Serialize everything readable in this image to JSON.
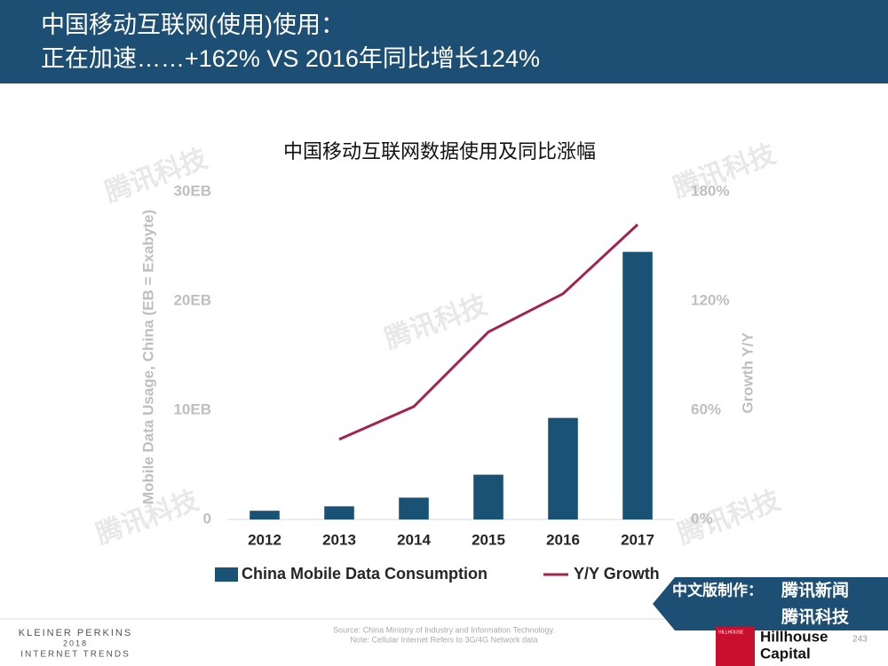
{
  "header": {
    "title_line1": "中国移动互联网(使用)使用：",
    "title_line2": "正在加速……+162% VS 2016年同比增长124%"
  },
  "watermark": "腾讯科技",
  "chart_data": {
    "type": "bar_line",
    "title": "中国移动互联网数据使用及同比涨幅",
    "categories": [
      "2012",
      "2013",
      "2014",
      "2015",
      "2016",
      "2017"
    ],
    "series": [
      {
        "name": "China Mobile Data Consumption",
        "color": "#1a5276",
        "values": [
          0.8,
          1.2,
          2.0,
          4.1,
          9.3,
          24.5
        ]
      },
      {
        "name": "Y/Y Growth",
        "color": "#a3224f",
        "axis": "y2",
        "values": [
          null,
          44,
          62,
          103,
          124,
          162
        ]
      }
    ],
    "ylabel": "Mobile Data Usage, China (EB = Exabyte)",
    "y2label": "Growth Y/Y",
    "ylim": [
      0,
      30
    ],
    "yticks": [
      0,
      {
        "value": 10,
        "label": "10EB"
      },
      {
        "value": 20,
        "label": "20EB"
      },
      {
        "value": 30,
        "label": "30EB"
      }
    ],
    "y2lim": [
      0,
      180
    ],
    "y2ticks": [
      {
        "value": 0,
        "label": "0%"
      },
      {
        "value": 60,
        "label": "60%"
      },
      {
        "value": 120,
        "label": "120%"
      },
      {
        "value": 180,
        "label": "180%"
      }
    ],
    "grid": false
  },
  "footer": {
    "kp_line1": "KLEINER PERKINS",
    "kp_line2": "2018",
    "kp_line3": "INTERNET TRENDS",
    "source_line1": "Source: China Ministry of Industry and Information Technology.",
    "source_line2": "Note: Cellular Internet Refers to 3G/4G Network data",
    "page_number": "243",
    "made_by": "中文版制作：",
    "brand1": "腾讯新闻",
    "brand2": "腾讯科技",
    "hillhouse_small": "HILLHOUSE",
    "hillhouse1": "Hillhouse",
    "hillhouse2": "Capital"
  }
}
